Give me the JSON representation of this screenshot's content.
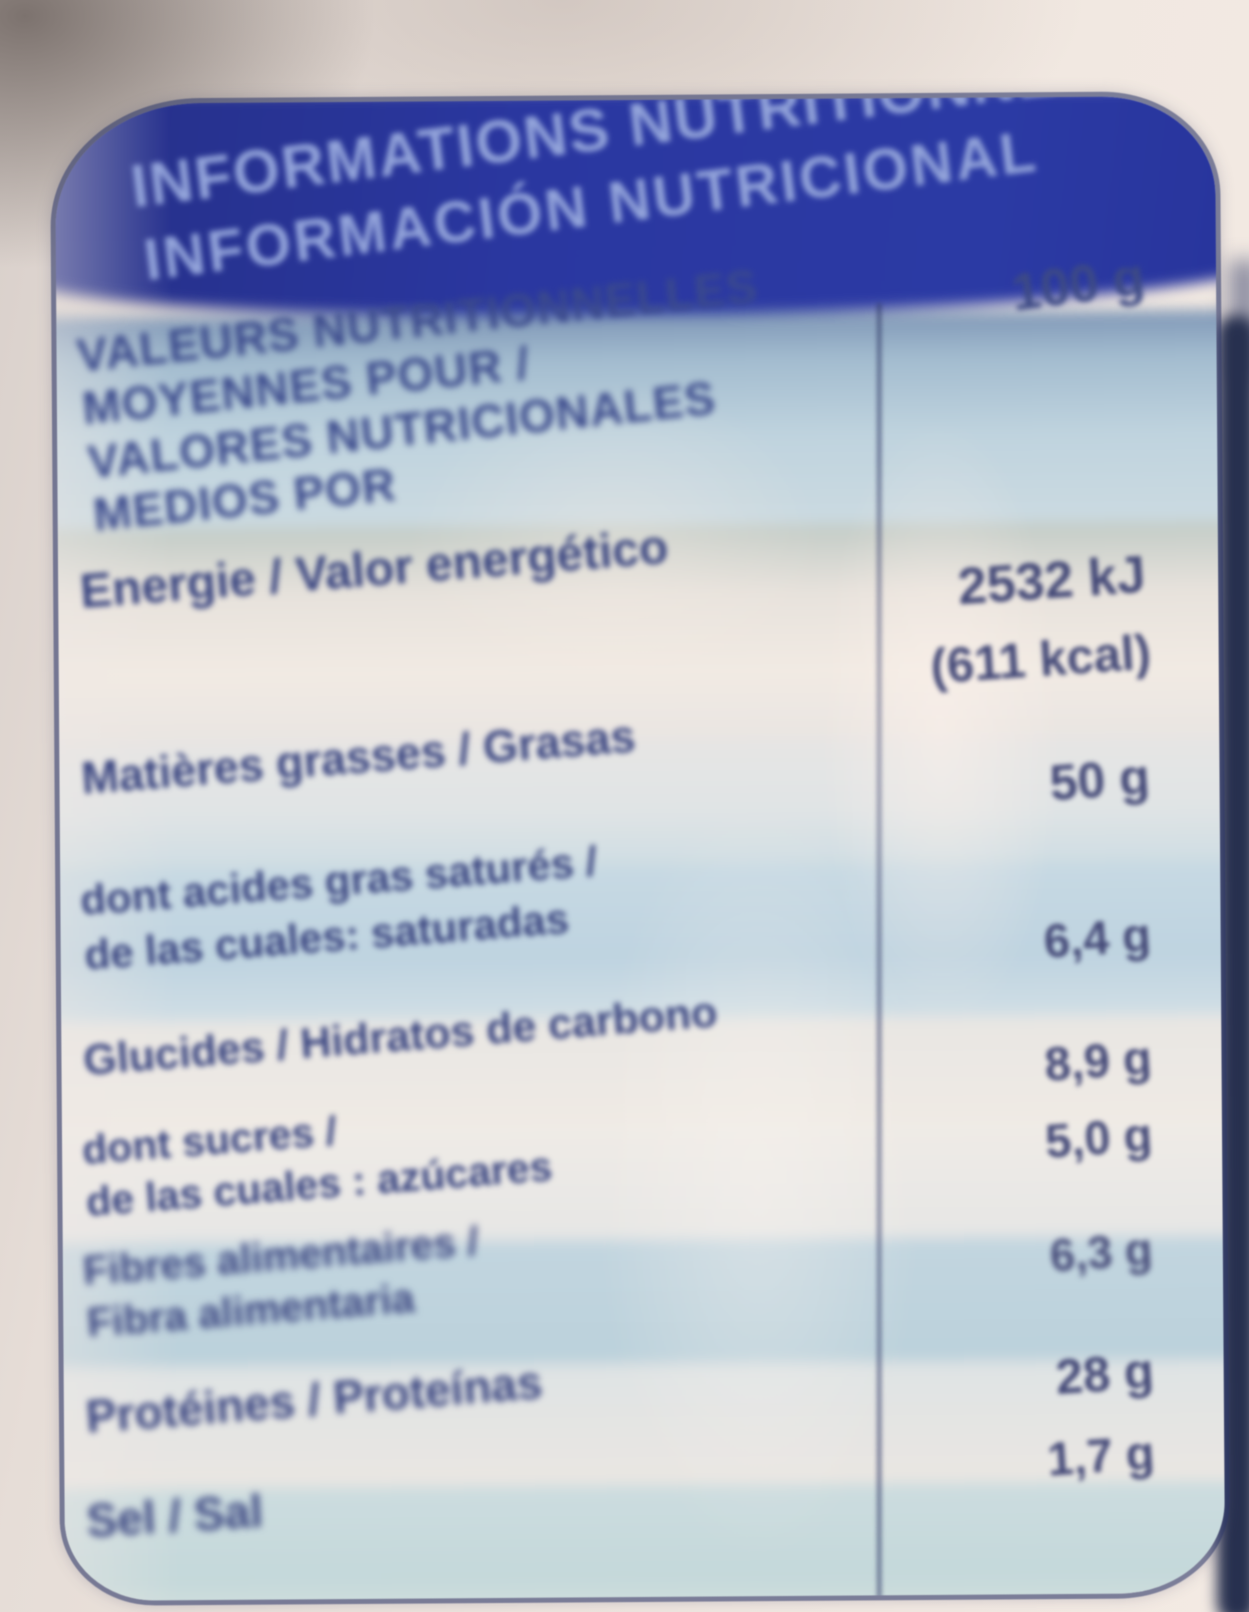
{
  "photo_subject": "nutrition facts label on food packaging, bilingual French / Spanish, blurry photo",
  "colors": {
    "banner_blue": "#2a37a0",
    "banner_text_blue": "#93a4da",
    "label_text_blue": "#3a4580",
    "value_text": "#454a78",
    "light_blue_band": "#c2d6e0",
    "white_band": "#efeae4",
    "package_edge_navy": "#27304f",
    "package_film": "#ece3dc"
  },
  "label": {
    "title_fr": "INFORMATIONS NUTRITIONNELLES",
    "title_es": "INFORMACIÓN NUTRICIONAL",
    "serving_column_header": "100 g",
    "intro": {
      "line1": "VALEURS NUTRITIONNELLES",
      "line2": "MOYENNES POUR /",
      "line3": "VALORES NUTRICIONALES",
      "line4": "MEDIOS POR"
    },
    "rows": [
      {
        "name": "energy",
        "label": "Energie / Valor energético",
        "value": "2532 kJ",
        "value2": "(611 kcal)"
      },
      {
        "name": "fat",
        "label": "Matières grasses / Grasas",
        "value": "50 g"
      },
      {
        "name": "saturates",
        "label": "dont acides gras saturés /",
        "label2": "de las cuales: saturadas",
        "value": "6,4 g"
      },
      {
        "name": "carbohydrate",
        "label": "Glucides / Hidratos de carbono",
        "value": "8,9 g"
      },
      {
        "name": "sugars",
        "label": "dont sucres /",
        "label2": "de las cuales : azúcares",
        "value": "5,0 g"
      },
      {
        "name": "fibre",
        "label": "Fibres alimentaires /",
        "label2": "Fibra alimentaria",
        "value": "6,3 g"
      },
      {
        "name": "protein",
        "label": "Protéines / Proteínas",
        "value": "28 g"
      },
      {
        "name": "salt",
        "label": "Sel / Sal",
        "value": "1,7 g"
      }
    ]
  }
}
